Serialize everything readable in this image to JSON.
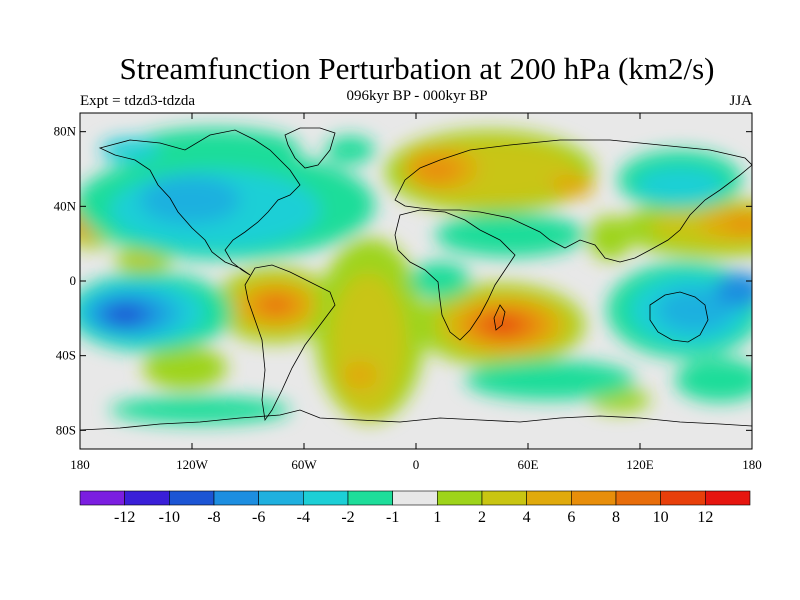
{
  "title": "Streamfunction Perturbation at 200 hPa (km2/s)",
  "subtitle": "096kyr BP - 000kyr BP",
  "left_label": "Expt = tdzd3-tdzda",
  "right_label": "JJA",
  "lat_ticks": [
    {
      "label": "80N",
      "value": 80
    },
    {
      "label": "40N",
      "value": 40
    },
    {
      "label": "0",
      "value": 0
    },
    {
      "label": "40S",
      "value": -40
    },
    {
      "label": "80S",
      "value": -80
    }
  ],
  "lon_ticks": [
    {
      "label": "180",
      "value": -180
    },
    {
      "label": "120W",
      "value": -120
    },
    {
      "label": "60W",
      "value": -60
    },
    {
      "label": "0",
      "value": 0
    },
    {
      "label": "60E",
      "value": 60
    },
    {
      "label": "120E",
      "value": 120
    },
    {
      "label": "180",
      "value": 180
    }
  ],
  "colorbar": {
    "colors": [
      "#7b1ee0",
      "#3a1fd8",
      "#1c55d4",
      "#1d8ee0",
      "#1fb0df",
      "#1dcfd6",
      "#1edd9a",
      "#e8e8e8",
      "#9ed41a",
      "#c9c512",
      "#e0aa0c",
      "#e88e0a",
      "#e86d0a",
      "#e83f0a",
      "#e6150f"
    ],
    "labels": [
      "-12",
      "-10",
      "-8",
      "-6",
      "-4",
      "-2",
      "-1",
      "1",
      "2",
      "4",
      "6",
      "8",
      "10",
      "12"
    ]
  },
  "chart_data": {
    "type": "heatmap",
    "title": "Streamfunction Perturbation at 200 hPa (km2/s)",
    "subtitle": "096kyr BP - 000kyr BP",
    "projection": "cylindrical equidistant",
    "xlim": [
      -180,
      180
    ],
    "ylim": [
      -90,
      90
    ],
    "levels": [
      -12,
      -10,
      -8,
      -6,
      -4,
      -2,
      -1,
      1,
      2,
      4,
      6,
      8,
      10,
      12
    ],
    "features": [
      {
        "lon": 50,
        "lat": -25,
        "value": 10
      },
      {
        "lon": -75,
        "lat": -15,
        "value": 8
      },
      {
        "lon": -30,
        "lat": -50,
        "value": 4
      },
      {
        "lon": 10,
        "lat": 65,
        "value": 7
      },
      {
        "lon": 85,
        "lat": 50,
        "value": 5
      },
      {
        "lon": 175,
        "lat": 30,
        "value": 6
      },
      {
        "lon": -178,
        "lat": 30,
        "value": 5
      },
      {
        "lon": -150,
        "lat": -18,
        "value": -8
      },
      {
        "lon": -120,
        "lat": 70,
        "value": -3
      },
      {
        "lon": -80,
        "lat": 55,
        "value": -3
      },
      {
        "lon": 150,
        "lat": -20,
        "value": -4
      },
      {
        "lon": -140,
        "lat": 10,
        "value": 3
      },
      {
        "lon": -140,
        "lat": -45,
        "value": 2
      }
    ]
  }
}
